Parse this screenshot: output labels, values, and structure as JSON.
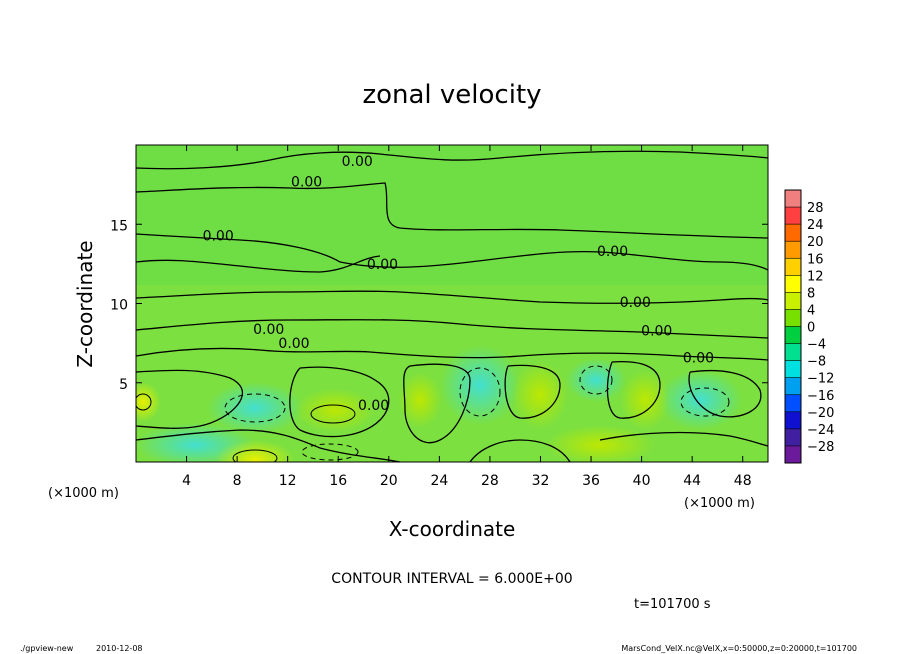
{
  "chart_data": {
    "type": "heatmap",
    "title": "zonal velocity",
    "xlabel": "X-coordinate",
    "ylabel": "Z-coordinate",
    "x_unit_label": "(×1000 m)",
    "y_unit_label": "(×1000 m)",
    "xlim": [
      0,
      50
    ],
    "ylim": [
      0,
      20
    ],
    "x_ticks": [
      4,
      8,
      12,
      16,
      20,
      24,
      28,
      32,
      36,
      40,
      44,
      48
    ],
    "y_ticks": [
      5,
      10,
      15
    ],
    "colorbar": {
      "levels": [
        28,
        24,
        20,
        16,
        12,
        8,
        4,
        0,
        -4,
        -8,
        -12,
        -16,
        -20,
        -24,
        -28
      ],
      "colors": [
        "#f08080",
        "#ff4040",
        "#ff6a00",
        "#ff9a00",
        "#ffd000",
        "#ffff00",
        "#c8f000",
        "#78e000",
        "#00d040",
        "#00e090",
        "#00e0e0",
        "#00a0f0",
        "#0050ff",
        "#1010d0",
        "#4020a0",
        "#6a1a9a"
      ]
    },
    "contour_labels": [
      {
        "text": "0.00",
        "x": 17.5,
        "z": 19.0
      },
      {
        "text": "0.00",
        "x": 13.5,
        "z": 17.7
      },
      {
        "text": "0.00",
        "x": 6.5,
        "z": 14.3
      },
      {
        "text": "0.00",
        "x": 37.7,
        "z": 13.3
      },
      {
        "text": "0.00",
        "x": 19.5,
        "z": 12.5
      },
      {
        "text": "0.00",
        "x": 39.5,
        "z": 10.1
      },
      {
        "text": "0.00",
        "x": 41.2,
        "z": 8.3
      },
      {
        "text": "0.00",
        "x": 10.5,
        "z": 8.4
      },
      {
        "text": "0.00",
        "x": 12.5,
        "z": 7.5
      },
      {
        "text": "0.00",
        "x": 44.5,
        "z": 6.6
      },
      {
        "text": "0.00",
        "x": 18.8,
        "z": 3.6
      }
    ]
  },
  "footer": {
    "contour_interval": "CONTOUR INTERVAL = 6.000E+00",
    "time": "t=101700 s",
    "program": "./gpview-new",
    "date": "2010-12-08",
    "source": "MarsCond_VelX.nc@VelX,x=0:50000,z=0:20000,t=101700"
  }
}
